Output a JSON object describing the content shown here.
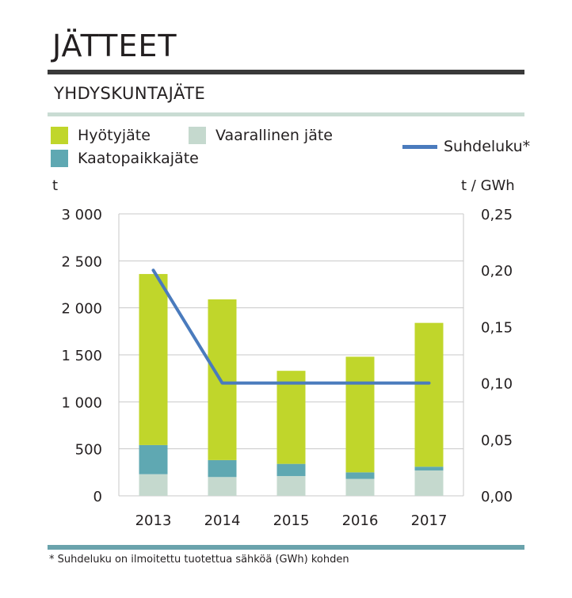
{
  "page": {
    "title": "JÄTTEET",
    "subtitle": "YHDYSKUNTAJÄTE",
    "footnote": "* Suhdeluku on ilmoitettu tuotettua sähköä (GWh) kohden"
  },
  "colors": {
    "hyotyjate": "#c0d62b",
    "kaatopaikkajate": "#5fa8b2",
    "vaarallinen": "#c5d9ce",
    "suhdeluku": "#4a7bbd"
  },
  "chart_data": {
    "type": "bar",
    "stacked": true,
    "categories": [
      "2013",
      "2014",
      "2015",
      "2016",
      "2017"
    ],
    "series": [
      {
        "name": "Vaarallinen jäte",
        "values": [
          230,
          200,
          210,
          180,
          270
        ],
        "color": "#c5d9ce"
      },
      {
        "name": "Kaatopaikkajäte",
        "values": [
          310,
          180,
          130,
          70,
          40
        ],
        "color": "#5fa8b2"
      },
      {
        "name": "Hyötyjäte",
        "values": [
          1820,
          1710,
          990,
          1230,
          1530
        ],
        "color": "#c0d62b"
      }
    ],
    "line_series": {
      "name": "Suhdeluku*",
      "axis": "right",
      "values": [
        0.2,
        0.1,
        0.1,
        0.1,
        0.1
      ],
      "color": "#4a7bbd"
    },
    "ylabel": "t",
    "ylabel_right": "t / GWh",
    "ylim": [
      0,
      3000
    ],
    "ylim_right": [
      0,
      0.25
    ],
    "yticks": [
      "0",
      "500",
      "1 000",
      "1 500",
      "2 000",
      "2 500",
      "3 000"
    ],
    "yticks_right": [
      "0,00",
      "0,05",
      "0,10",
      "0,15",
      "0,20",
      "0,25"
    ],
    "grid": true,
    "legend": {
      "hyotyjate": "Hyötyjäte",
      "vaarallinen": "Vaarallinen jäte",
      "kaatopaikkajate": "Kaatopaikkajäte",
      "suhdeluku": "Suhdeluku*"
    }
  }
}
